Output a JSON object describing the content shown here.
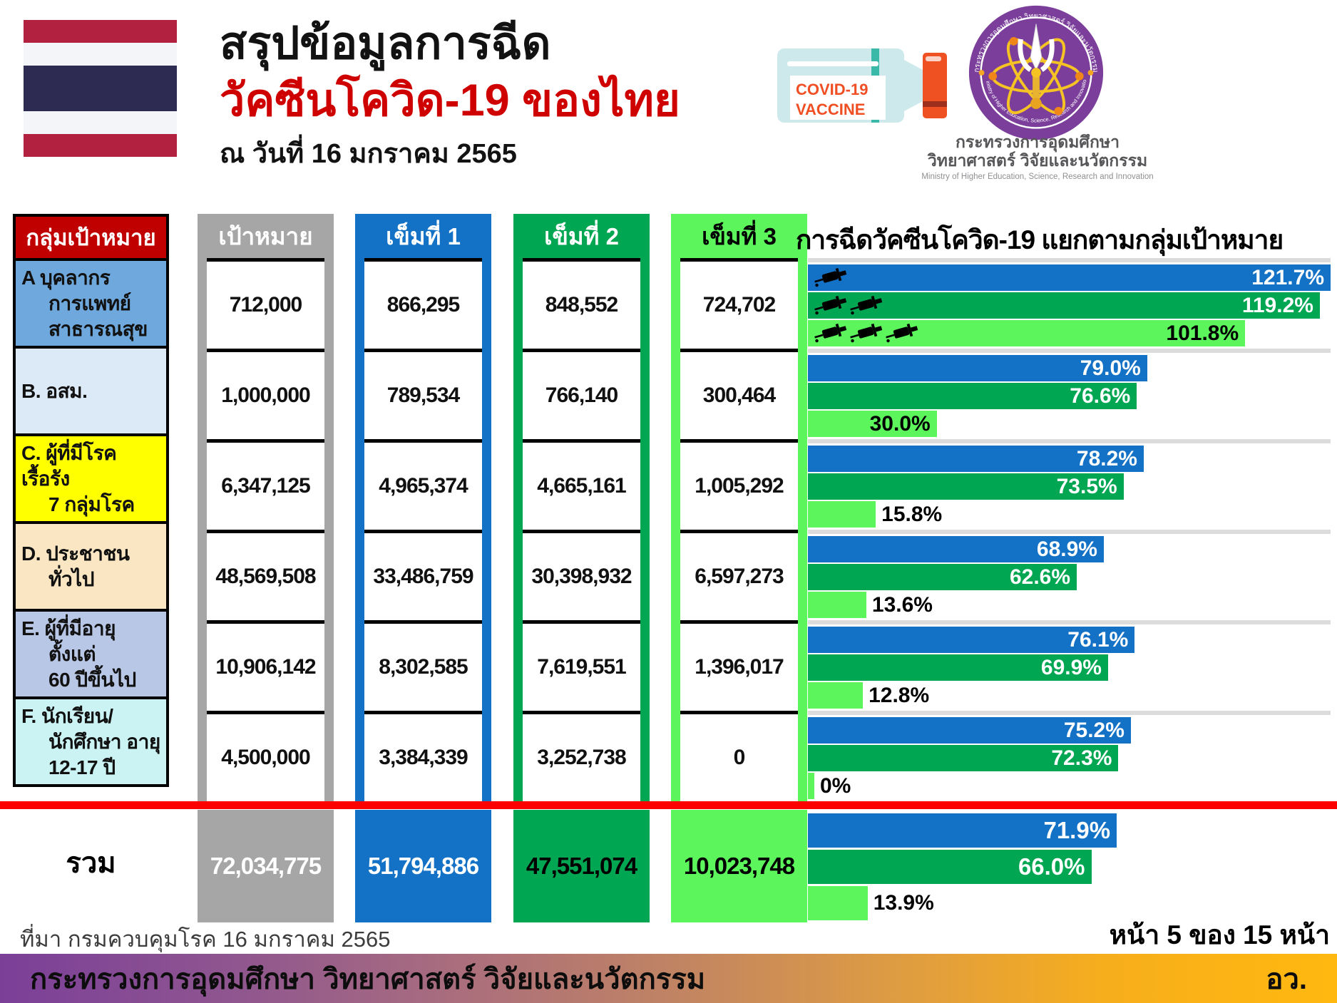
{
  "header": {
    "title_line1": "สรุปข้อมูลการฉีด",
    "title_line2": "วัคซีนโควิด-19 ของไทย",
    "date_line": "ณ วันที่ 16 มกราคม 2565",
    "title_red": "#ce0000",
    "vial": {
      "label_line1": "COVID-19",
      "label_line2": "VACCINE"
    },
    "logo": {
      "ring_text_top": "กระทรวงการอุดมศึกษา วิทยาศาสตร์ วิจัยและนวัตกรรม",
      "ring_text_bottom": "Ministry of Higher Education, Science, Research and Innovation",
      "caption_line1": "กระทรวงการอุดมศึกษา",
      "caption_line2": "วิทยาศาสตร์ วิจัยและนวัตกรรม",
      "caption_line3": "Ministry of Higher Education, Science, Research and Innovation"
    },
    "flag_colors": [
      "#b22240",
      "#f4f5f8",
      "#2d2b52",
      "#f4f5f8",
      "#b22240"
    ]
  },
  "table": {
    "col_headers": [
      {
        "label": "กลุ่มเป้าหมาย",
        "color": "#c00000",
        "text_color": "#ffffff"
      },
      {
        "label": "เป้าหมาย",
        "color": "#a6a6a6",
        "text_color": "#ffffff"
      },
      {
        "label": "เข็มที่ 1",
        "color": "#1371c6",
        "text_color": "#ffffff"
      },
      {
        "label": "เข็มที่ 2",
        "color": "#00a651",
        "text_color": "#ffffff"
      },
      {
        "label": "เข็มที่ 3",
        "color": "#5cf65c",
        "text_color": "#000000"
      }
    ],
    "rows": [
      {
        "label_lines": [
          "A บุคลากร",
          "การแพทย์",
          "สาธารณสุข"
        ],
        "bg": "#6fa8dc",
        "values": [
          "712,000",
          "866,295",
          "848,552",
          "724,702"
        ]
      },
      {
        "label_lines": [
          "B. อสม."
        ],
        "bg": "#dce9f7",
        "values": [
          "1,000,000",
          "789,534",
          "766,140",
          "300,464"
        ]
      },
      {
        "label_lines": [
          "C. ผู้ที่มีโรคเรื้อรัง",
          "7 กลุ่มโรค"
        ],
        "bg": "#ffff00",
        "values": [
          "6,347,125",
          "4,965,374",
          "4,665,161",
          "1,005,292"
        ]
      },
      {
        "label_lines": [
          "D. ประชาชน",
          "ทั่วไป"
        ],
        "bg": "#fbe6c3",
        "values": [
          "48,569,508",
          "33,486,759",
          "30,398,932",
          "6,597,273"
        ]
      },
      {
        "label_lines": [
          "E. ผู้ที่มีอายุ",
          "ตั้งแต่",
          "60 ปีขึ้นไป"
        ],
        "bg": "#b9c7e6",
        "values": [
          "10,906,142",
          "8,302,585",
          "7,619,551",
          "1,396,017"
        ]
      },
      {
        "label_lines": [
          "F. นักเรียน/",
          "นักศึกษา อายุ",
          "12-17 ปี"
        ],
        "bg": "#cbf3f3",
        "values": [
          "4,500,000",
          "3,384,339",
          "3,252,738",
          "0"
        ]
      }
    ],
    "total": {
      "label": "รวม",
      "values": [
        "72,034,775",
        "51,794,886",
        "47,551,074",
        "10,023,748"
      ],
      "block_colors": [
        "#a6a6a6",
        "#1371c6",
        "#00a651",
        "#5cf65c"
      ],
      "text_colors": [
        "#ffffff",
        "#ffffff",
        "#000000",
        "#000000"
      ]
    }
  },
  "chart_data": {
    "type": "bar",
    "orientation": "horizontal",
    "title": "การฉีดวัคซีนโควิด-19 แยกตามกลุ่มเป้าหมาย",
    "series": [
      "เข็มที่ 1",
      "เข็มที่ 2",
      "เข็มที่ 3"
    ],
    "series_colors": [
      "#1371c6",
      "#00a651",
      "#5cf65c"
    ],
    "axis_max_pct": 121.7,
    "grid": false,
    "groups": [
      {
        "category": "A บุคลากรการแพทย์ สาธารณสุข",
        "values_pct": [
          121.7,
          119.2,
          101.8
        ],
        "labels": [
          "121.7%",
          "119.2%",
          "101.8%"
        ],
        "syringe_icons": [
          1,
          2,
          3
        ]
      },
      {
        "category": "B. อสม.",
        "values_pct": [
          79.0,
          76.6,
          30.0
        ],
        "labels": [
          "79.0%",
          "76.6%",
          "30.0%"
        ]
      },
      {
        "category": "C. ผู้ที่มีโรคเรื้อรัง 7 กลุ่มโรค",
        "values_pct": [
          78.2,
          73.5,
          15.8
        ],
        "labels": [
          "78.2%",
          "73.5%",
          "15.8%"
        ]
      },
      {
        "category": "D. ประชาชนทั่วไป",
        "values_pct": [
          68.9,
          62.6,
          13.6
        ],
        "labels": [
          "68.9%",
          "62.6%",
          "13.6%"
        ]
      },
      {
        "category": "E. ผู้ที่มีอายุตั้งแต่ 60 ปีขึ้นไป",
        "values_pct": [
          76.1,
          69.9,
          12.8
        ],
        "labels": [
          "76.1%",
          "69.9%",
          "12.8%"
        ]
      },
      {
        "category": "F. นักเรียน/นักศึกษา อายุ 12-17 ปี",
        "values_pct": [
          75.2,
          72.3,
          0
        ],
        "labels": [
          "75.2%",
          "72.3%",
          "0%"
        ]
      }
    ],
    "total_group": {
      "category": "รวม",
      "values_pct": [
        71.9,
        66.0,
        13.9
      ],
      "labels": [
        "71.9%",
        "66.0%",
        "13.9%"
      ]
    }
  },
  "footer": {
    "source": "ที่มา กรมควบคุมโรค 16 มกราคม 2565",
    "page": "หน้า 5 ของ 15 หน้า",
    "bar_text": "กระทรวงการอุดมศึกษา วิทยาศาสตร์ วิจัยและนวัตกรรม",
    "bar_abbrev": "อว.",
    "divider_color": "#fe0000",
    "bar_gradient": [
      "#7b3f98",
      "#8e5590",
      "#a86c7f",
      "#c08364",
      "#de9c42",
      "#f7ae1c",
      "#ffb80f"
    ]
  }
}
